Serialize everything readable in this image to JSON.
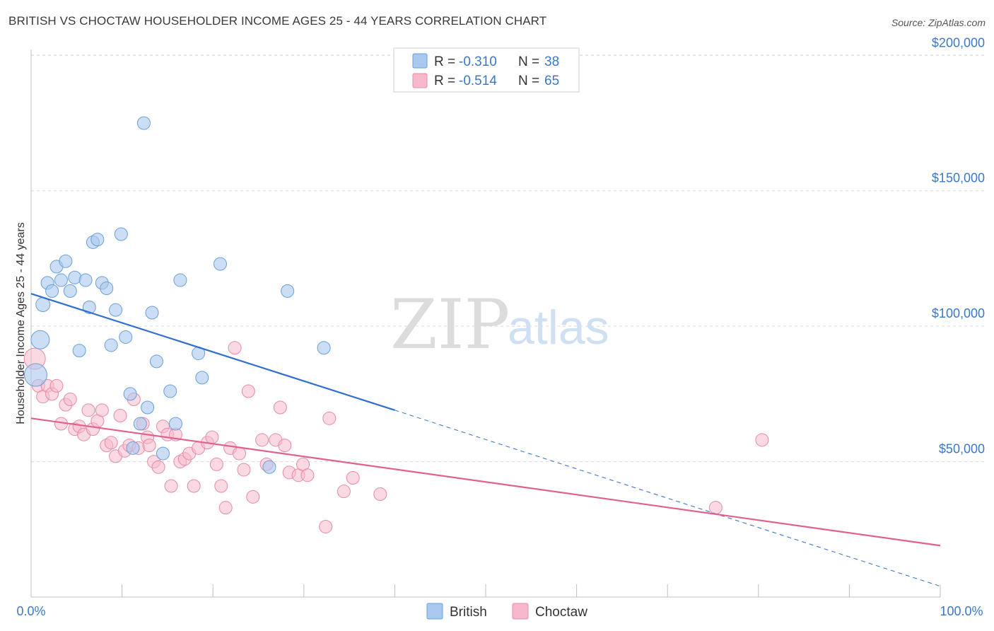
{
  "header": {
    "title": "BRITISH VS CHOCTAW HOUSEHOLDER INCOME AGES 25 - 44 YEARS CORRELATION CHART",
    "source": "Source: ZipAtlas.com"
  },
  "watermark": {
    "zip": "ZIP",
    "atlas": "atlas"
  },
  "legend": {
    "british": {
      "r_label": "R = ",
      "r_value": "-0.310",
      "n_label": "N = ",
      "n_value": "38"
    },
    "choctaw": {
      "r_label": "R = ",
      "r_value": "-0.514",
      "n_label": "N = ",
      "n_value": "65"
    }
  },
  "bottom_legend": {
    "british": "British",
    "choctaw": "Choctaw"
  },
  "colors": {
    "british_fill": "#aac8ee",
    "british_stroke": "#6a9fd8",
    "british_line": "#2f6fce",
    "choctaw_fill": "#f6b9cc",
    "choctaw_stroke": "#e88aa7",
    "choctaw_line": "#e0618f",
    "grid": "#d9d9d9",
    "tick_text": "#3a78c9"
  },
  "chart_data": {
    "type": "scatter",
    "title": "BRITISH VS CHOCTAW HOUSEHOLDER INCOME AGES 25 - 44 YEARS CORRELATION CHART",
    "xlabel": "",
    "ylabel": "Householder Income Ages 25 - 44 years",
    "xlim": [
      0,
      100
    ],
    "ylim": [
      0,
      210000
    ],
    "x_tick_labels": [
      "0.0%",
      "100.0%"
    ],
    "y_ticks": [
      50000,
      100000,
      150000,
      200000
    ],
    "y_tick_labels": [
      "$50,000",
      "$100,000",
      "$150,000",
      "$200,000"
    ],
    "grid": true,
    "legend_position": "top-center",
    "series": [
      {
        "name": "British",
        "r": -0.31,
        "n": 38,
        "trend": {
          "x0": 0,
          "y0": 112000,
          "x1": 40,
          "y1": 69000,
          "dashed_to_x": 100,
          "dashed_to_y": 4000
        },
        "points": [
          [
            0.5,
            82000,
            30
          ],
          [
            1.0,
            95000,
            24
          ],
          [
            1.3,
            108000,
            18
          ],
          [
            1.8,
            116000,
            16
          ],
          [
            2.3,
            113000,
            16
          ],
          [
            2.8,
            122000,
            16
          ],
          [
            3.3,
            117000,
            16
          ],
          [
            3.8,
            124000,
            16
          ],
          [
            4.3,
            113000,
            16
          ],
          [
            4.8,
            118000,
            16
          ],
          [
            5.3,
            91000,
            16
          ],
          [
            6.0,
            117000,
            16
          ],
          [
            6.4,
            107000,
            16
          ],
          [
            6.8,
            131000,
            16
          ],
          [
            7.3,
            132000,
            16
          ],
          [
            7.8,
            116000,
            16
          ],
          [
            8.3,
            114000,
            16
          ],
          [
            8.8,
            93000,
            16
          ],
          [
            9.3,
            106000,
            16
          ],
          [
            9.9,
            134000,
            16
          ],
          [
            10.4,
            96000,
            16
          ],
          [
            10.9,
            75000,
            16
          ],
          [
            11.2,
            55000,
            16
          ],
          [
            12.0,
            64000,
            16
          ],
          [
            12.4,
            175000,
            16
          ],
          [
            12.8,
            70000,
            16
          ],
          [
            13.3,
            105000,
            16
          ],
          [
            13.8,
            87000,
            16
          ],
          [
            14.5,
            53000,
            16
          ],
          [
            15.3,
            76000,
            16
          ],
          [
            15.9,
            64000,
            16
          ],
          [
            16.4,
            117000,
            16
          ],
          [
            18.4,
            90000,
            16
          ],
          [
            18.8,
            81000,
            16
          ],
          [
            20.8,
            123000,
            16
          ],
          [
            26.2,
            48000,
            16
          ],
          [
            28.2,
            113000,
            16
          ],
          [
            32.2,
            92000,
            16
          ]
        ]
      },
      {
        "name": "Choctaw",
        "r": -0.514,
        "n": 65,
        "trend": {
          "x0": 0,
          "y0": 66000,
          "x1": 100,
          "y1": 19000
        },
        "points": [
          [
            0.4,
            88000,
            28
          ],
          [
            0.8,
            78000,
            16
          ],
          [
            1.3,
            74000,
            16
          ],
          [
            1.8,
            78000,
            16
          ],
          [
            2.3,
            75000,
            16
          ],
          [
            2.8,
            78000,
            16
          ],
          [
            3.3,
            64000,
            16
          ],
          [
            3.8,
            71000,
            16
          ],
          [
            4.3,
            73000,
            16
          ],
          [
            4.8,
            62000,
            16
          ],
          [
            5.3,
            63000,
            16
          ],
          [
            5.8,
            60000,
            16
          ],
          [
            6.3,
            69000,
            16
          ],
          [
            6.8,
            62000,
            16
          ],
          [
            7.3,
            65000,
            16
          ],
          [
            7.8,
            69000,
            16
          ],
          [
            8.3,
            56000,
            16
          ],
          [
            8.8,
            57000,
            16
          ],
          [
            9.3,
            52000,
            16
          ],
          [
            9.8,
            67000,
            16
          ],
          [
            10.3,
            54000,
            16
          ],
          [
            10.8,
            56000,
            16
          ],
          [
            11.3,
            73000,
            16
          ],
          [
            11.8,
            55000,
            16
          ],
          [
            12.3,
            64000,
            16
          ],
          [
            12.8,
            59000,
            16
          ],
          [
            13.0,
            56000,
            16
          ],
          [
            13.5,
            50000,
            16
          ],
          [
            14.0,
            48000,
            16
          ],
          [
            14.5,
            63000,
            16
          ],
          [
            15.0,
            60000,
            16
          ],
          [
            15.4,
            41000,
            16
          ],
          [
            15.9,
            60000,
            16
          ],
          [
            16.4,
            50000,
            16
          ],
          [
            16.9,
            51000,
            16
          ],
          [
            17.4,
            53000,
            16
          ],
          [
            17.9,
            41000,
            16
          ],
          [
            18.4,
            55000,
            16
          ],
          [
            19.4,
            57000,
            16
          ],
          [
            19.9,
            59000,
            16
          ],
          [
            20.4,
            49000,
            16
          ],
          [
            20.9,
            41000,
            16
          ],
          [
            21.4,
            33000,
            16
          ],
          [
            21.9,
            55000,
            16
          ],
          [
            22.4,
            92000,
            16
          ],
          [
            22.9,
            53000,
            16
          ],
          [
            23.4,
            47000,
            16
          ],
          [
            23.9,
            76000,
            16
          ],
          [
            24.4,
            37000,
            16
          ],
          [
            25.4,
            58000,
            16
          ],
          [
            25.9,
            49000,
            16
          ],
          [
            26.9,
            58000,
            16
          ],
          [
            27.4,
            70000,
            16
          ],
          [
            27.9,
            56000,
            16
          ],
          [
            28.4,
            46000,
            16
          ],
          [
            29.4,
            45000,
            16
          ],
          [
            29.9,
            49000,
            16
          ],
          [
            30.4,
            45000,
            16
          ],
          [
            32.4,
            26000,
            16
          ],
          [
            32.8,
            66000,
            16
          ],
          [
            34.4,
            39000,
            16
          ],
          [
            35.4,
            44000,
            16
          ],
          [
            38.4,
            38000,
            16
          ],
          [
            75.3,
            33000,
            16
          ],
          [
            80.4,
            58000,
            16
          ]
        ]
      }
    ]
  }
}
